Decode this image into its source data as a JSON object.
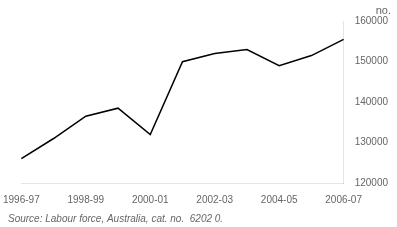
{
  "chart_data": {
    "type": "line",
    "categories": [
      "1996-97",
      null,
      "1998-99",
      null,
      "2000-01",
      null,
      "2002-03",
      null,
      "2004-05",
      null,
      "2006-07"
    ],
    "values": [
      126000,
      131000,
      136500,
      138500,
      132000,
      150000,
      152000,
      153000,
      149000,
      151500,
      155500
    ],
    "color": "#000000",
    "ylim": [
      120000,
      160000
    ],
    "yticks": [
      120000,
      130000,
      140000,
      150000,
      160000
    ],
    "ylabel": "no.",
    "annotations": [
      "Source: Labour force, Australia, cat. no.  6202 0."
    ],
    "grid": false
  }
}
